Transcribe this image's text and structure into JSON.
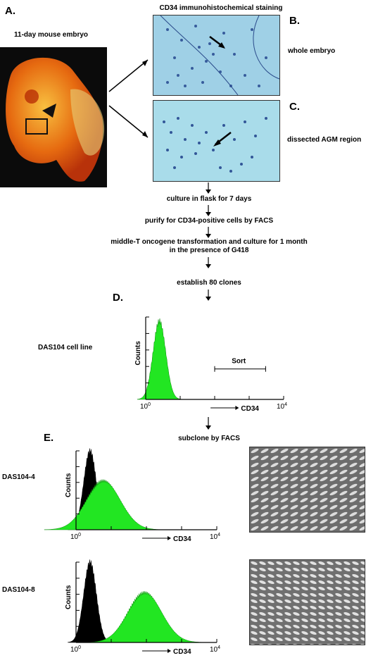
{
  "panels": {
    "a": {
      "letter": "A.",
      "caption": "11-day mouse embryo"
    },
    "b": {
      "letter": "B.",
      "caption": "whole embryo"
    },
    "c": {
      "letter": "C.",
      "caption": "dissected AGM region"
    },
    "d": {
      "letter": "D."
    },
    "e": {
      "letter": "E."
    }
  },
  "header": {
    "stain_title": "CD34 immunohistochemical staining"
  },
  "steps": [
    "culture in flask for 7 days",
    "purify for CD34-positive cells by FACS",
    "middle-T oncogene transformation and culture for 1 month",
    "in the presence of G418",
    "establish 80 clones",
    "subclone by FACS"
  ],
  "histograms": {
    "d": {
      "cell_line": "DAS104 cell line",
      "ylabel": "Counts",
      "x_tick_left": "10",
      "x_tick_left_exp": "0",
      "x_tick_right": "10",
      "x_tick_right_exp": "4",
      "xlabel": "CD34",
      "gate_label": "Sort"
    },
    "e1": {
      "cell_line": "DAS104-4",
      "ylabel": "Counts",
      "x_tick_left": "10",
      "x_tick_left_exp": "0",
      "x_tick_right": "10",
      "x_tick_right_exp": "4",
      "xlabel": "CD34"
    },
    "e2": {
      "cell_line": "DAS104-8",
      "ylabel": "Counts",
      "x_tick_left": "10",
      "x_tick_left_exp": "0",
      "x_tick_right": "10",
      "x_tick_right_exp": "4",
      "xlabel": "CD34"
    }
  },
  "colors": {
    "negative_fill": "#000000",
    "positive_fill": "#22e622",
    "micrograph_b": "#9fd0e6",
    "micrograph_c": "#a9dcea",
    "embryo_bg": "#111111"
  },
  "chart_data": [
    {
      "type": "area",
      "name_ref": "histograms.d",
      "x_scale": "log",
      "xlim": [
        1,
        10000
      ],
      "peaks": [
        {
          "color": "green",
          "center": 2.5,
          "relative_height": 0.95
        }
      ]
    },
    {
      "type": "area",
      "name_ref": "histograms.e1",
      "x_scale": "log",
      "xlim": [
        1,
        10000
      ],
      "peaks": [
        {
          "color": "black",
          "center": 2.5,
          "relative_height": 1.0
        },
        {
          "color": "green",
          "center": 6,
          "relative_height": 0.62
        }
      ]
    },
    {
      "type": "area",
      "name_ref": "histograms.e2",
      "x_scale": "log",
      "xlim": [
        1,
        10000
      ],
      "peaks": [
        {
          "color": "black",
          "center": 2.5,
          "relative_height": 1.0
        },
        {
          "color": "green",
          "center": 90,
          "relative_height": 0.62
        }
      ]
    }
  ]
}
